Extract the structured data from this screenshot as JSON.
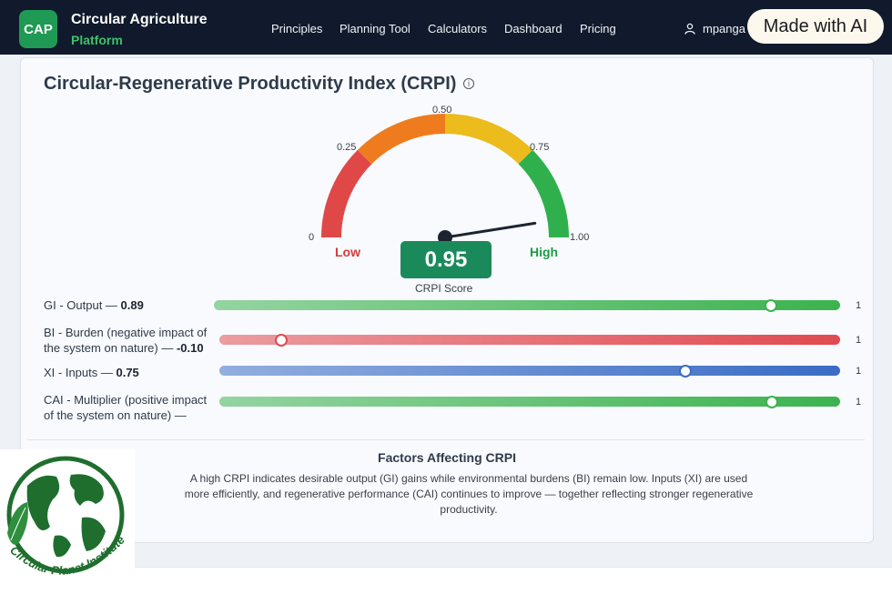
{
  "nav": {
    "logo": "CAP",
    "brand_line1": "Circular Agriculture",
    "brand_line2": "Platform",
    "links": [
      "Principles",
      "Planning Tool",
      "Calculators",
      "Dashboard",
      "Pricing"
    ],
    "user": "mpanga",
    "ai_badge": "Made with AI"
  },
  "card": {
    "title": "Circular-Regenerative Productivity Index (CRPI)",
    "info_icon": "i"
  },
  "gauge": {
    "ticks": [
      "0",
      "0.25",
      "0.50",
      "0.75",
      "1.00"
    ],
    "low_label": "Low",
    "high_label": "High",
    "score": "0.95",
    "score_value": 0.95,
    "score_label": "CRPI Score",
    "colors": {
      "red": "#e04848",
      "orange": "#ee7c1e",
      "yellow": "#ecbb1c",
      "green": "#2fb04c"
    }
  },
  "sliders": [
    {
      "label_line1": "GI - Output — ",
      "value": "0.89",
      "label_line2": "",
      "position": 0.89,
      "max": "1",
      "color": "#3cb34f"
    },
    {
      "label_line1": "BI - Burden (negative impact of",
      "value": "-0.10",
      "label_line2": "the system on nature) — ",
      "position": 0.1,
      "max": "1",
      "color": "#e04a50"
    },
    {
      "label_line1": "XI - Inputs — ",
      "value": "0.75",
      "label_line2": "",
      "position": 0.75,
      "max": "1",
      "color": "#3a6cc4"
    },
    {
      "label_line1": "CAI - Multiplier (positive impact",
      "value": "",
      "label_line2": "of the system on nature) —",
      "position": 0.89,
      "max": "1",
      "color": "#3cb34f"
    }
  ],
  "factors": {
    "title": "Factors Affecting CRPI",
    "text": "A high CRPI indicates desirable output (GI) gains while environmental burdens (BI) remain low. Inputs (XI) are used more efficiently, and regenerative performance (CAI) continues to improve — together reflecting stronger regenerative productivity."
  },
  "watermark": {
    "name": "Circular Planet Institute"
  }
}
